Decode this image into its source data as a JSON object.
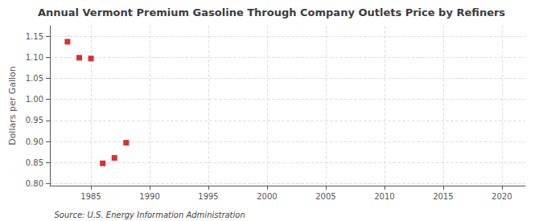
{
  "chart_data": {
    "type": "scatter",
    "title": "Annual Vermont Premium Gasoline Through Company Outlets Price by Refiners",
    "ylabel": "Dollars per Gallon",
    "annotations": [
      "Source: U.S. Energy Information Administration"
    ],
    "x": [
      1983,
      1984,
      1985,
      1986,
      1987,
      1988
    ],
    "values": [
      1.137,
      1.099,
      1.097,
      0.848,
      0.861,
      0.897
    ],
    "color": "#cc0000",
    "marker": "square",
    "xlim": [
      1981.5,
      2022
    ],
    "xticks": [
      1985,
      1990,
      1995,
      2000,
      2005,
      2010,
      2015,
      2020
    ],
    "ylim": [
      0.795,
      1.175
    ],
    "yticks": [
      {
        "value": 0.8,
        "label": "0.80"
      },
      0.85,
      {
        "value": 0.9,
        "label": "0.90"
      },
      0.95,
      {
        "value": 1.0,
        "label": "1.00"
      },
      1.05,
      {
        "value": 1.1,
        "label": "1.10"
      },
      1.15
    ],
    "grid": true
  }
}
